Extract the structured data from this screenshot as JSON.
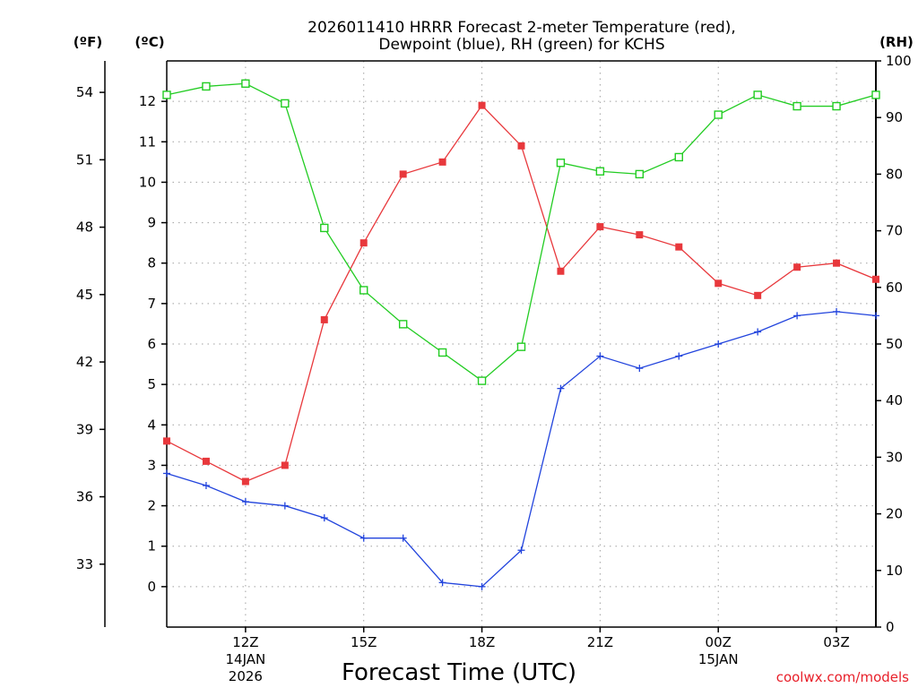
{
  "title_line1": "2026011410 HRRR Forecast 2-meter Temperature (red),",
  "title_line2": "Dewpoint (blue), RH (green) for KCHS",
  "units": {
    "fahrenheit": "(ºF)",
    "celsius": "(ºC)",
    "rh": "(RH)"
  },
  "xlabel": "Forecast Time (UTC)",
  "credit": "coolwx.com/models",
  "colors": {
    "temperature": "#e8383c",
    "dewpoint": "#2244dd",
    "rh": "#22cc22"
  },
  "chart_data": {
    "type": "line",
    "title": "2026011410 HRRR Forecast 2-meter Temperature (red), Dewpoint (blue), RH (green) for KCHS",
    "x_hours_utc": [
      10,
      11,
      12,
      13,
      14,
      15,
      16,
      17,
      18,
      19,
      20,
      21,
      22,
      23,
      24,
      25,
      26,
      27,
      28
    ],
    "x_ticks": [
      {
        "hour": 12,
        "label": "12Z",
        "date": "14JAN",
        "year": "2026"
      },
      {
        "hour": 15,
        "label": "15Z"
      },
      {
        "hour": 18,
        "label": "18Z"
      },
      {
        "hour": 21,
        "label": "21Z"
      },
      {
        "hour": 24,
        "label": "00Z",
        "date": "15JAN"
      },
      {
        "hour": 27,
        "label": "03Z"
      }
    ],
    "xlim": [
      10,
      28
    ],
    "celsius_axis": {
      "ylim": [
        -1,
        13
      ],
      "ticks": [
        0,
        1,
        2,
        3,
        4,
        5,
        6,
        7,
        8,
        9,
        10,
        11,
        12
      ]
    },
    "fahrenheit_axis": {
      "ticks": [
        33,
        36,
        39,
        42,
        45,
        48,
        51,
        54
      ]
    },
    "rh_axis": {
      "ylim": [
        0,
        100
      ],
      "ticks": [
        0,
        10,
        20,
        30,
        40,
        50,
        60,
        70,
        80,
        90,
        100
      ]
    },
    "series": [
      {
        "name": "Temperature",
        "units": "C",
        "axis": "celsius",
        "values": [
          3.6,
          3.1,
          2.6,
          3.0,
          6.6,
          8.5,
          10.2,
          10.5,
          11.9,
          10.9,
          7.8,
          8.9,
          8.7,
          8.4,
          7.5,
          7.2,
          7.9,
          8.0,
          7.6
        ]
      },
      {
        "name": "Dewpoint",
        "units": "C",
        "axis": "celsius",
        "values": [
          2.8,
          2.5,
          2.1,
          2.0,
          1.7,
          1.2,
          1.2,
          0.1,
          0.0,
          0.9,
          4.9,
          5.7,
          5.4,
          5.7,
          6.0,
          6.3,
          6.7,
          6.8,
          6.7
        ]
      },
      {
        "name": "RH",
        "units": "%",
        "axis": "rh",
        "values": [
          94,
          95.5,
          96,
          92.5,
          70.5,
          59.5,
          53.5,
          48.5,
          43.5,
          49.5,
          82,
          80.5,
          80,
          83,
          90.5,
          94,
          92,
          92,
          94
        ]
      }
    ]
  }
}
